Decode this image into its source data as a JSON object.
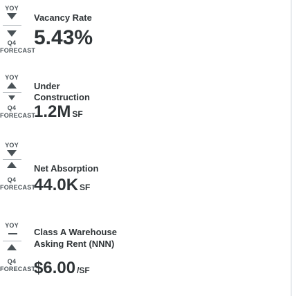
{
  "rows": [
    {
      "yoy_label": "YOY",
      "yoy_icon": "arrow-down-icon",
      "forecast_quarter": "Q4",
      "forecast_label": "FORECAST",
      "forecast_icon": "arrow-down-icon",
      "title_line1": "Vacancy Rate",
      "title_line2": "",
      "value": "5.43%",
      "unit": ""
    },
    {
      "yoy_label": "YOY",
      "yoy_icon": "arrow-up-icon",
      "forecast_quarter": "Q4",
      "forecast_label": "FORECAST",
      "forecast_icon": "arrow-down-icon",
      "title_line1": "Under",
      "title_line2": "Construction",
      "value": "1.2M",
      "unit": "SF"
    },
    {
      "yoy_label": "YOY",
      "yoy_icon": "arrow-down-icon",
      "forecast_quarter": "Q4",
      "forecast_label": "FORECAST",
      "forecast_icon": "arrow-up-icon",
      "title_line1": "Net Absorption",
      "title_line2": "",
      "value": "44.0K",
      "unit": "SF"
    },
    {
      "yoy_label": "YOY",
      "yoy_icon": "flat-dash-icon",
      "forecast_quarter": "Q4",
      "forecast_label": "FORECAST",
      "forecast_icon": "arrow-up-icon",
      "title_line1": "Class A Warehouse",
      "title_line2": "Asking Rent (NNN)",
      "value": "$6.00",
      "unit": "/SF"
    }
  ],
  "colors": {
    "text": "#2f3437",
    "icon": "#4a5257",
    "separator": "#aeb4b9"
  }
}
